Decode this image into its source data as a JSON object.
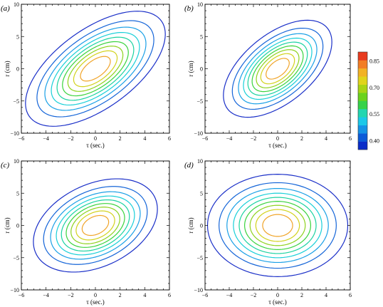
{
  "chart_data": [
    {
      "type": "contour",
      "panel_label": "(a)",
      "xlabel": "τ (sec.)",
      "ylabel": "r (cm)",
      "xlim": [
        -6,
        6
      ],
      "ylim": [
        -10,
        10
      ],
      "xticks": [
        "−6",
        "−4",
        "−2",
        "0",
        "2",
        "4",
        "6"
      ],
      "yticks": [
        "10",
        "5",
        "0",
        "−5",
        "−10"
      ],
      "peak": [
        0,
        0
      ],
      "sigma_tau": 3.3,
      "sigma_r": 5.2,
      "correlation": 0.6,
      "levels": [
        0.1,
        0.2,
        0.3,
        0.4,
        0.5,
        0.6,
        0.7,
        0.8,
        0.9
      ]
    },
    {
      "type": "contour",
      "panel_label": "(b)",
      "xlabel": "τ (sec.)",
      "ylabel": "r (cm)",
      "xlim": [
        -6,
        6
      ],
      "ylim": [
        -10,
        10
      ],
      "xticks": [
        "−6",
        "−4",
        "−2",
        "0",
        "2",
        "4",
        "6"
      ],
      "yticks": [
        "10",
        "5",
        "0",
        "−5",
        "−10"
      ],
      "peak": [
        0,
        0
      ],
      "sigma_tau": 2.5,
      "sigma_r": 4.2,
      "correlation": 0.55,
      "levels": [
        0.1,
        0.2,
        0.3,
        0.4,
        0.5,
        0.6,
        0.7,
        0.8,
        0.9
      ]
    },
    {
      "type": "contour",
      "panel_label": "(c)",
      "xlabel": "τ (sec.)",
      "ylabel": "r (cm)",
      "xlim": [
        -6,
        6
      ],
      "ylim": [
        -10,
        10
      ],
      "xticks": [
        "−6",
        "−4",
        "−2",
        "0",
        "2",
        "4",
        "6"
      ],
      "yticks": [
        "10",
        "5",
        "0",
        "−5",
        "−10"
      ],
      "peak": [
        0,
        0
      ],
      "sigma_tau": 2.5,
      "sigma_r": 3.6,
      "correlation": 0.35,
      "levels": [
        0.1,
        0.2,
        0.3,
        0.4,
        0.5,
        0.6,
        0.7,
        0.8,
        0.9
      ]
    },
    {
      "type": "contour",
      "panel_label": "(d)",
      "xlabel": "τ (sec.)",
      "ylabel": "r (cm)",
      "xlim": [
        -6,
        6
      ],
      "ylim": [
        -10,
        10
      ],
      "xticks": [
        "−6",
        "−4",
        "−2",
        "0",
        "2",
        "4",
        "6"
      ],
      "yticks": [
        "10",
        "5",
        "0",
        "−5",
        "−10"
      ],
      "peak": [
        0,
        0
      ],
      "sigma_tau": 2.7,
      "sigma_r": 3.7,
      "correlation": 0.0,
      "levels": [
        0.1,
        0.2,
        0.3,
        0.4,
        0.5,
        0.6,
        0.7,
        0.8,
        0.9
      ]
    }
  ],
  "colorbar": {
    "ticks": [
      "0.85",
      "0.70",
      "0.55",
      "0.40"
    ],
    "tick_values": [
      0.85,
      0.7,
      0.55,
      0.4
    ],
    "range": [
      0.35,
      0.9
    ],
    "colors": [
      "#0a2cc8",
      "#0b5ad8",
      "#1492e6",
      "#1ac8e8",
      "#22d6b0",
      "#36d24a",
      "#6ad21c",
      "#a8d414",
      "#e0d41a",
      "#f2b224",
      "#f27d24",
      "#e83a1e"
    ]
  },
  "contour_colors": [
    "#1a2fc8",
    "#1565d8",
    "#1aa0e6",
    "#19cfd8",
    "#1ad2a0",
    "#39d33c",
    "#8ed21e",
    "#d2d21c",
    "#f0a428",
    "#e8521a"
  ]
}
